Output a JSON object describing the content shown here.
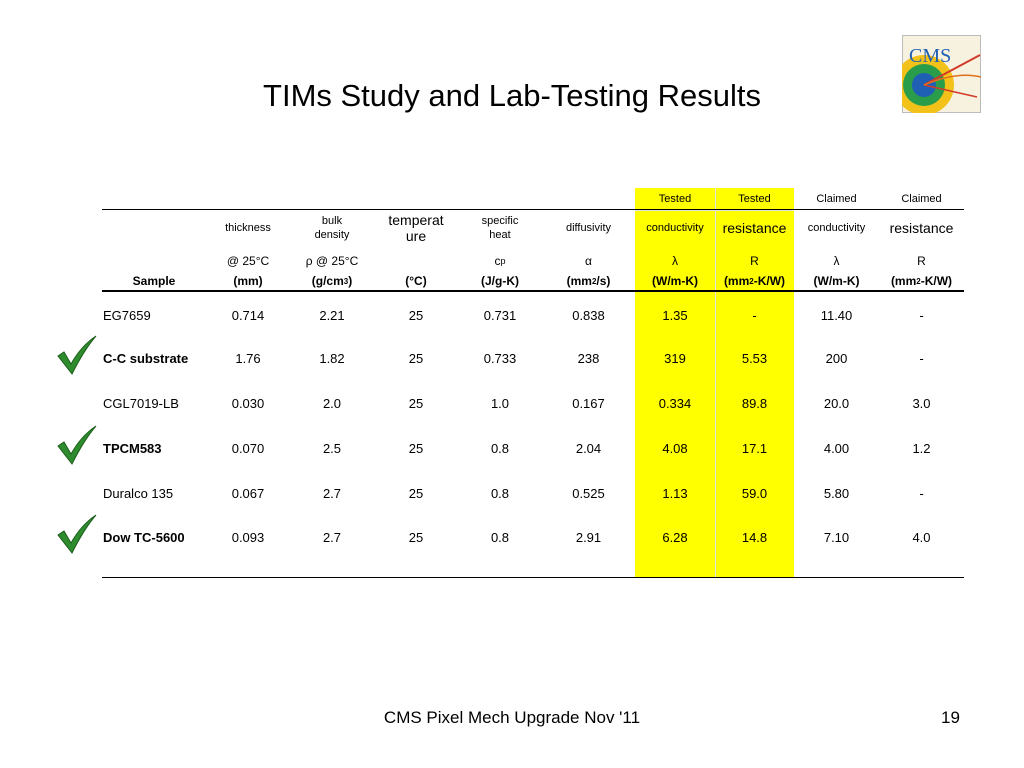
{
  "title": "TIMs Study and Lab-Testing Results",
  "logo": {
    "text": "CMS",
    "icon": "cms-logo"
  },
  "colors": {
    "highlight": "#ffff00",
    "check": "#2e8b2e"
  },
  "table": {
    "status_row": [
      "",
      "",
      "",
      "",
      "",
      "",
      "Tested",
      "Tested",
      "Claimed",
      "Claimed"
    ],
    "name_row": [
      [
        ""
      ],
      [
        "thickness"
      ],
      [
        "bulk",
        "density"
      ],
      [
        "temperat",
        "ure"
      ],
      [
        "specific",
        "heat"
      ],
      [
        "diffusivity"
      ],
      [
        "conductivity"
      ],
      [
        "resistance"
      ],
      [
        "conductivity"
      ],
      [
        "resistance"
      ]
    ],
    "condition_row": [
      "",
      "@ 25°C",
      "ρ @ 25°C",
      "",
      "cp",
      "α",
      "λ",
      "R",
      "λ",
      "R"
    ],
    "units_row": [
      "Sample",
      "(mm)",
      "(g/cm3)",
      "(°C)",
      "(J/g-K)",
      "(mm2/s)",
      "(W/m-K)",
      "(mm2-K/W)",
      "(W/m-K)",
      "(mm2-K/W)"
    ],
    "rows": [
      {
        "checked": false,
        "bold": false,
        "cells": [
          "EG7659",
          "0.714",
          "2.21",
          "25",
          "0.731",
          "0.838",
          "1.35",
          "-",
          "11.40",
          "-"
        ]
      },
      {
        "checked": true,
        "bold": true,
        "cells": [
          "C-C substrate",
          "1.76",
          "1.82",
          "25",
          "0.733",
          "238",
          "319",
          "5.53",
          "200",
          "-"
        ]
      },
      {
        "checked": false,
        "bold": false,
        "cells": [
          "CGL7019-LB",
          "0.030",
          "2.0",
          "25",
          "1.0",
          "0.167",
          "0.334",
          "89.8",
          "20.0",
          "3.0"
        ]
      },
      {
        "checked": true,
        "bold": true,
        "cells": [
          "TPCM583",
          "0.070",
          "2.5",
          "25",
          "0.8",
          "2.04",
          "4.08",
          "17.1",
          "4.00",
          "1.2"
        ]
      },
      {
        "checked": false,
        "bold": false,
        "cells": [
          "Duralco 135",
          "0.067",
          "2.7",
          "25",
          "0.8",
          "0.525",
          "1.13",
          "59.0",
          "5.80",
          "-"
        ]
      },
      {
        "checked": true,
        "bold": true,
        "cells": [
          "Dow TC-5600",
          "0.093",
          "2.7",
          "25",
          "0.8",
          "2.91",
          "6.28",
          "14.8",
          "7.10",
          "4.0"
        ]
      }
    ]
  },
  "footer": "CMS Pixel Mech Upgrade Nov '11",
  "page_number": "19"
}
